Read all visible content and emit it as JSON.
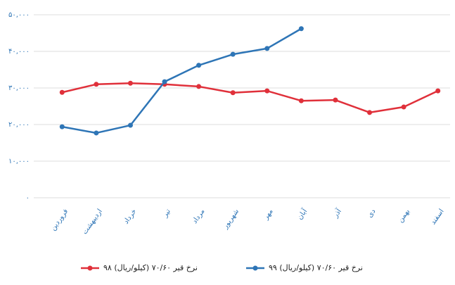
{
  "chart_data": {
    "type": "line",
    "categories": [
      "فروردین",
      "اردیبهشت",
      "خرداد",
      "تیر",
      "مرداد",
      "شهریور",
      "مهر",
      "آبان",
      "آذر",
      "دی",
      "بهمن",
      "اسفند"
    ],
    "series": [
      {
        "name": "نرخ قیر ۷۰/۶۰ (کیلو/ریال) ۹۸",
        "color": "#e0303a",
        "values": [
          28800,
          31000,
          31300,
          31000,
          30400,
          28700,
          29200,
          26500,
          26700,
          23300,
          24800,
          29200
        ]
      },
      {
        "name": "نرخ قیر ۷۰/۶۰ (کیلو/ریال) ۹۹",
        "color": "#2e75b6",
        "values": [
          19400,
          17700,
          19800,
          31700,
          36200,
          39200,
          40800,
          46200,
          null,
          null,
          null,
          null
        ]
      }
    ],
    "ylim": [
      0,
      50000
    ],
    "yticks": [
      {
        "value": 0,
        "label": "۰"
      },
      {
        "value": 10000,
        "label": "۱۰,۰۰۰"
      },
      {
        "value": 20000,
        "label": "۲۰,۰۰۰"
      },
      {
        "value": 30000,
        "label": "۳۰,۰۰۰"
      },
      {
        "value": 40000,
        "label": "۴۰,۰۰۰"
      },
      {
        "value": 50000,
        "label": "۵۰,۰۰۰"
      }
    ],
    "grid": true
  }
}
